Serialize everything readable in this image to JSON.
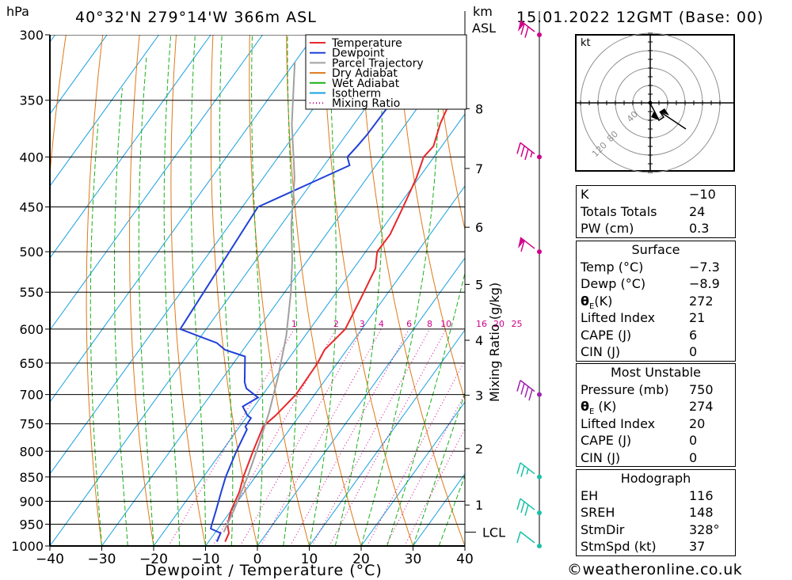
{
  "header": {
    "hpa_unit": "hPa",
    "location": "40°32'N  279°14'W  366m  ASL",
    "km_unit": "km",
    "asl_unit": "ASL",
    "date": "15.01.2022  12GMT  (Base: 00)"
  },
  "chart_data": {
    "type": "skew-t",
    "xlabel": "Dewpoint / Temperature (°C)",
    "ylabel_right": "Mixing Ratio (g/kg)",
    "x_ticks": [
      "−40",
      "−30",
      "−20",
      "−10",
      "0",
      "10",
      "20",
      "30",
      "40"
    ],
    "x_range": [
      -40,
      40
    ],
    "pressure_ticks": [
      300,
      350,
      400,
      450,
      500,
      550,
      600,
      650,
      700,
      750,
      800,
      850,
      900,
      950,
      1000
    ],
    "pressure_range": [
      1000,
      300
    ],
    "km_ticks": [
      {
        "km": "1",
        "p": 908
      },
      {
        "km": "2",
        "p": 795
      },
      {
        "km": "3",
        "p": 701
      },
      {
        "km": "4",
        "p": 616
      },
      {
        "km": "5",
        "p": 540
      },
      {
        "km": "6",
        "p": 472
      },
      {
        "km": "7",
        "p": 411
      },
      {
        "km": "8",
        "p": 357
      }
    ],
    "lcl": {
      "label": "LCL",
      "p": 968
    },
    "mixing_ratio_labels": [
      "1",
      "2",
      "3",
      "4",
      "6",
      "8",
      "10",
      "16",
      "20",
      "25"
    ],
    "mixing_ratio_values": [
      1,
      2,
      3,
      4,
      6,
      8,
      10,
      16,
      20,
      25
    ],
    "legend": [
      {
        "name": "Temperature",
        "color": "#e8282a",
        "style": "solid"
      },
      {
        "name": "Dewpoint",
        "color": "#2040d8",
        "style": "solid"
      },
      {
        "name": "Parcel Trajectory",
        "color": "#a0a0a0",
        "style": "solid"
      },
      {
        "name": "Dry Adiabat",
        "color": "#e07818",
        "style": "solid"
      },
      {
        "name": "Wet Adiabat",
        "color": "#18b018",
        "style": "solid"
      },
      {
        "name": "Isotherm",
        "color": "#18a0e0",
        "style": "solid"
      },
      {
        "name": "Mixing Ratio",
        "color": "#d0008a",
        "style": "dotted"
      }
    ],
    "series": [
      {
        "name": "Temperature",
        "points": [
          [
            -6.8,
            990
          ],
          [
            -7.3,
            970
          ],
          [
            -8.8,
            950
          ],
          [
            -10.0,
            920
          ],
          [
            -11.0,
            880
          ],
          [
            -12.3,
            850
          ],
          [
            -14.0,
            800
          ],
          [
            -15.3,
            760
          ],
          [
            -15.5,
            755
          ],
          [
            -14.6,
            735
          ],
          [
            -13.6,
            700
          ],
          [
            -13.8,
            650
          ],
          [
            -14.3,
            630
          ],
          [
            -13.2,
            600
          ],
          [
            -14.4,
            560
          ],
          [
            -15.8,
            520
          ],
          [
            -17.8,
            500
          ],
          [
            -17.7,
            480
          ],
          [
            -19.0,
            450
          ],
          [
            -20.5,
            420
          ],
          [
            -22.0,
            400
          ],
          [
            -21.6,
            390
          ],
          [
            -23.4,
            370
          ],
          [
            -25.3,
            340
          ],
          [
            -25.5,
            330
          ],
          [
            -27.3,
            300
          ]
        ]
      },
      {
        "name": "Dewpoint",
        "points": [
          [
            -8.4,
            990
          ],
          [
            -8.9,
            970
          ],
          [
            -11.4,
            960
          ],
          [
            -11.8,
            950
          ],
          [
            -12.9,
            920
          ],
          [
            -14.5,
            880
          ],
          [
            -15.7,
            850
          ],
          [
            -17.2,
            800
          ],
          [
            -18.2,
            760
          ],
          [
            -18.9,
            755
          ],
          [
            -19.0,
            740
          ],
          [
            -20.1,
            735
          ],
          [
            -22.2,
            720
          ],
          [
            -20.5,
            705
          ],
          [
            -24.0,
            690
          ],
          [
            -25.2,
            680
          ],
          [
            -28.7,
            640
          ],
          [
            -33.5,
            630
          ],
          [
            -36.0,
            620
          ],
          [
            -45.0,
            600
          ],
          [
            -47.0,
            450
          ],
          [
            -35.1,
            408
          ],
          [
            -36.7,
            400
          ],
          [
            -36.3,
            390
          ],
          [
            -36.0,
            380
          ],
          [
            -35.8,
            350
          ],
          [
            -36.0,
            340
          ],
          [
            -37.0,
            330
          ],
          [
            -36.8,
            300
          ]
        ]
      },
      {
        "name": "Parcel Trajectory",
        "points": [
          [
            -8.4,
            968
          ],
          [
            -9.5,
            920
          ],
          [
            -11.5,
            850
          ],
          [
            -13.7,
            790
          ],
          [
            -16.3,
            730
          ],
          [
            -19.6,
            670
          ],
          [
            -23.6,
            610
          ],
          [
            -28.8,
            550
          ],
          [
            -33.0,
            510
          ],
          [
            -38.0,
            470
          ],
          [
            -44.0,
            420
          ],
          [
            -52.0,
            370
          ],
          [
            -60.0,
            320
          ]
        ]
      }
    ],
    "wind_barbs": [
      {
        "p": 300,
        "speed_kt": 70
      },
      {
        "p": 400,
        "speed_kt": 35
      },
      {
        "p": 500,
        "speed_kt": 60
      },
      {
        "p": 700,
        "speed_kt": 40
      },
      {
        "p": 850,
        "speed_kt": 25
      },
      {
        "p": 925,
        "speed_kt": 30
      },
      {
        "p": 1000,
        "speed_kt": 10
      }
    ],
    "hodograph": {
      "unit": "kt",
      "ring_labels": [
        "40",
        "80",
        "120"
      ]
    },
    "colors": {
      "isotherm": "#18a0e0",
      "dry_adiabat": "#e07818",
      "wet_adiabat": "#18b018",
      "mixing_ratio": "#d0008a",
      "temperature": "#e8282a",
      "dewpoint": "#2040d8",
      "parcel": "#a0a0a0",
      "barb_high": "#d0008a",
      "barb_mid": "#a020b0",
      "barb_low": "#18c0a8"
    }
  },
  "indices": {
    "k_label": "K",
    "k_value": "−10",
    "tt_label": "Totals Totals",
    "tt_value": "24",
    "pw_label": "PW (cm)",
    "pw_value": "0.3"
  },
  "surface": {
    "title": "Surface",
    "rows": [
      {
        "label": "Temp (°C)",
        "value": "−7.3"
      },
      {
        "label": "Dewp (°C)",
        "value": "−8.9"
      },
      {
        "label": "θE(K)",
        "value": "272"
      },
      {
        "label": "Lifted Index",
        "value": "21"
      },
      {
        "label": "CAPE (J)",
        "value": "6"
      },
      {
        "label": "CIN (J)",
        "value": "0"
      }
    ]
  },
  "most_unstable": {
    "title": "Most Unstable",
    "rows": [
      {
        "label": "Pressure (mb)",
        "value": "750"
      },
      {
        "label": "θE (K)",
        "value": "274"
      },
      {
        "label": "Lifted Index",
        "value": "20"
      },
      {
        "label": "CAPE (J)",
        "value": "0"
      },
      {
        "label": "CIN (J)",
        "value": "0"
      }
    ]
  },
  "hodograph_table": {
    "title": "Hodograph",
    "rows": [
      {
        "label": "EH",
        "value": "116"
      },
      {
        "label": "SREH",
        "value": "148"
      },
      {
        "label": "StmDir",
        "value": "328°"
      },
      {
        "label": "StmSpd (kt)",
        "value": "37"
      }
    ]
  },
  "credit": "©weatheronline.co.uk"
}
